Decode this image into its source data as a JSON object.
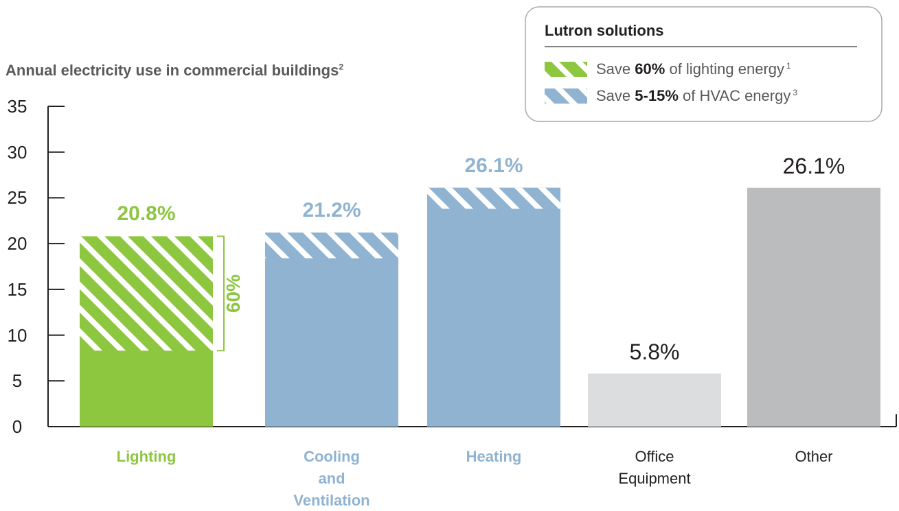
{
  "chart_data": {
    "type": "bar",
    "title": "Annual electricity use in commercial buildings",
    "title_note": "2",
    "categories": [
      "Lighting",
      "Cooling and Ventilation",
      "Heating",
      "Office Equipment",
      "Other"
    ],
    "values": [
      20.8,
      21.2,
      26.1,
      5.8,
      26.1
    ],
    "value_labels": [
      "20.8%",
      "21.2%",
      "26.1%",
      "5.8%",
      "26.1%"
    ],
    "savings": [
      12.5,
      2.8,
      2.3,
      null,
      null
    ],
    "colors": [
      "#8dc63f",
      "#8fb3d0",
      "#8fb3d0",
      "#dcddde",
      "#bbbcbe"
    ],
    "label_colors": [
      "#8dc63f",
      "#8fb3d0",
      "#8fb3d0",
      "#231f20",
      "#231f20"
    ],
    "label_bold": [
      true,
      true,
      true,
      false,
      false
    ],
    "ylim": [
      0,
      35
    ],
    "yticks": [
      0,
      5,
      10,
      15,
      20,
      25,
      30,
      35
    ],
    "annotation": "60%",
    "legend": {
      "title": "Lutron solutions",
      "entries": [
        {
          "prefix": "Save",
          "emphasis": "60%",
          "suffix": "of lighting energy",
          "note": "1",
          "color": "#8dc63f"
        },
        {
          "prefix": "Save",
          "emphasis": "5-15%",
          "suffix": "of HVAC energy",
          "note": "3",
          "color": "#8fb3d0"
        }
      ]
    }
  }
}
